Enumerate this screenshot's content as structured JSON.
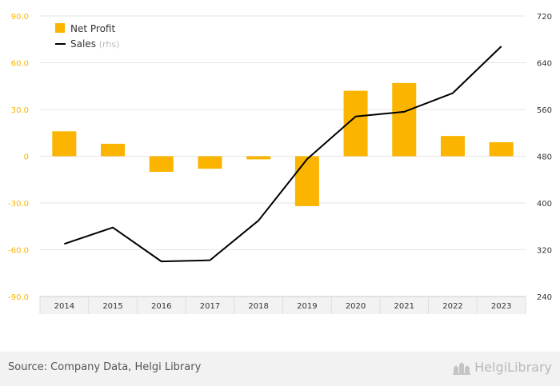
{
  "chart_data": {
    "type": "bar",
    "categories": [
      "2014",
      "2015",
      "2016",
      "2017",
      "2018",
      "2019",
      "2020",
      "2021",
      "2022",
      "2023"
    ],
    "series": [
      {
        "name": "Net Profit",
        "type": "bar",
        "axis": "left",
        "color": "#fbb400",
        "values": [
          16,
          8,
          -10,
          -8,
          -2,
          -32,
          42,
          47,
          13,
          9
        ]
      },
      {
        "name": "Sales",
        "name_suffix": "(rhs)",
        "type": "line",
        "axis": "right",
        "color": "#000000",
        "values": [
          330,
          358,
          300,
          302,
          370,
          475,
          548,
          556,
          588,
          668
        ]
      }
    ],
    "y_left": {
      "range": [
        -90,
        90
      ],
      "ticks": [
        "90.0",
        "60.0",
        "30.0",
        "0",
        "-30.0",
        "-60.0",
        "-90.0"
      ],
      "tick_color": "#fbb400"
    },
    "y_right": {
      "range": [
        240,
        720
      ],
      "ticks": [
        "720",
        "640",
        "560",
        "480",
        "400",
        "320",
        "240"
      ]
    },
    "legend_position": "top-left",
    "grid": true
  },
  "footer": {
    "source": "Source: Company Data, Helgi Library",
    "brand": "HelgiLibrary"
  }
}
